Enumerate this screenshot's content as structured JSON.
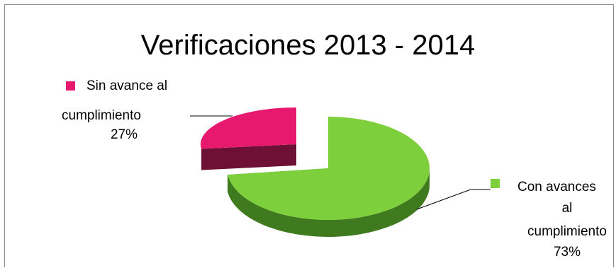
{
  "chart_data": {
    "type": "pie",
    "title": "Verificaciones 2013 - 2014",
    "slices": [
      {
        "label_lines": [
          "Sin avance al",
          "cumplimiento"
        ],
        "value": 27,
        "percent_label": "27%",
        "color": "#e6196e",
        "side_color": "#6e0f35"
      },
      {
        "label_lines": [
          "Con avances",
          "al",
          "cumplimiento"
        ],
        "value": 73,
        "percent_label": "73%",
        "color": "#7ecf3c",
        "side_color": "#3f7a1e"
      }
    ],
    "legend": "inline-labels",
    "three_d": true
  }
}
